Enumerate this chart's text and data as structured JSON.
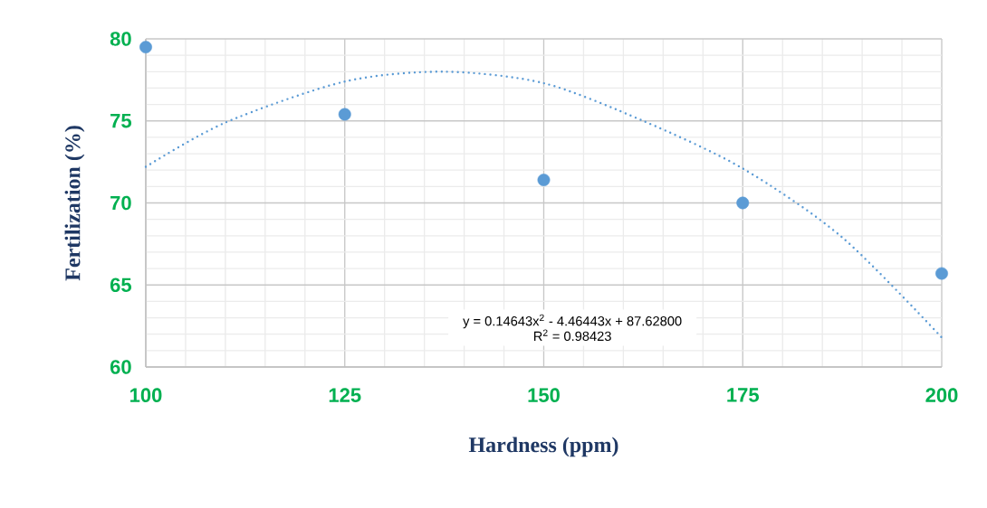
{
  "chart_data": {
    "type": "scatter",
    "xlabel": "Hardness (ppm)",
    "ylabel": "Fertilization (%)",
    "xlim": [
      100,
      200
    ],
    "ylim": [
      60,
      80
    ],
    "xticks": [
      100,
      125,
      150,
      175,
      200
    ],
    "yticks": [
      60,
      65,
      70,
      75,
      80
    ],
    "grid": true,
    "marker": "circle",
    "x": [
      100,
      125,
      150,
      175,
      200
    ],
    "series": [
      {
        "color": "#5b9bd5",
        "values": [
          79.5,
          75.4,
          71.4,
          70.0,
          65.7
        ]
      },
      {
        "type": "line",
        "color": "#5b9bd5",
        "line_style": "dotted",
        "marker": "none",
        "x": [
          100,
          110,
          125,
          137.5,
          150,
          162.5,
          175,
          187.5,
          200
        ],
        "values": [
          72.2,
          74.9,
          77.4,
          78.0,
          77.3,
          75.0,
          72.1,
          67.9,
          61.8
        ]
      }
    ],
    "annotations": [
      "y = 0.14643x$^{2}$ - 4.46443x + 87.62800",
      "R$^{2}$ = 0.98423"
    ]
  }
}
